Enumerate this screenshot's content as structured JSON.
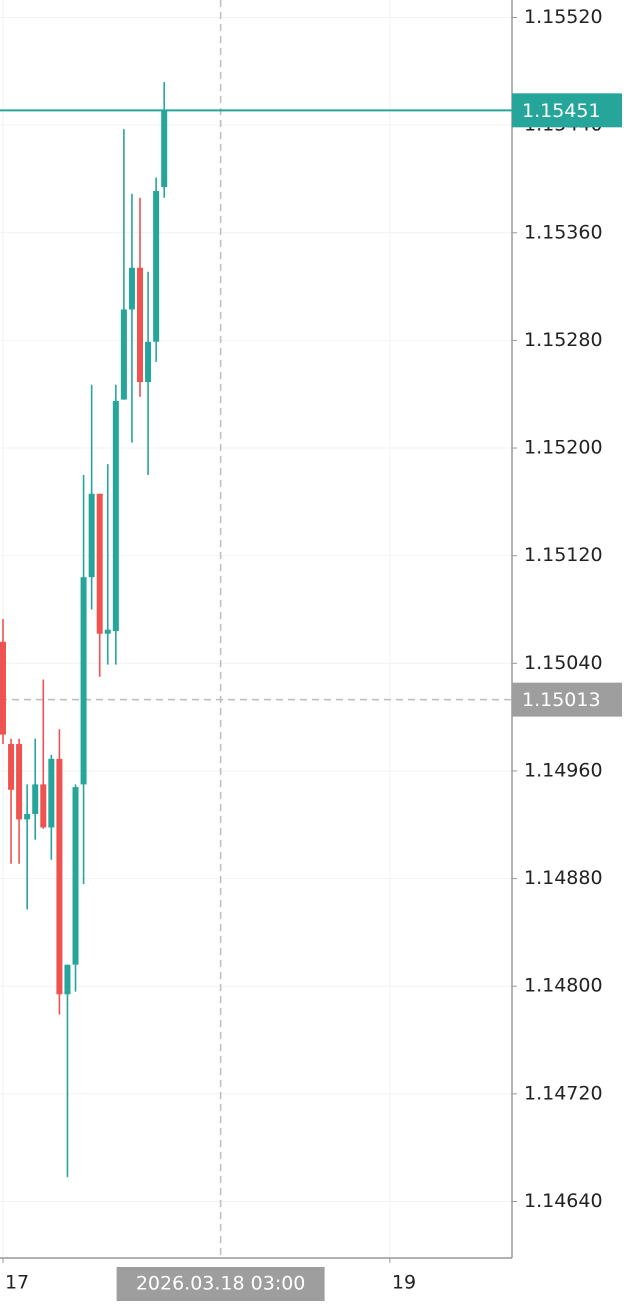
{
  "chart_data": {
    "type": "candlestick",
    "x": [
      0,
      1,
      2,
      3,
      4,
      5,
      6,
      7,
      8,
      9,
      10,
      11,
      12,
      13,
      14,
      15,
      16,
      17,
      18,
      19,
      20
    ],
    "open": [
      1.15056,
      1.1498,
      1.1498,
      1.14924,
      1.14928,
      1.1495,
      1.14918,
      1.14969,
      1.14794,
      1.14816,
      1.1495,
      1.15104,
      1.15166,
      1.15062,
      1.15064,
      1.15236,
      1.15303,
      1.15334,
      1.15249,
      1.15279,
      1.15394
    ],
    "high": [
      1.15073,
      1.14984,
      1.14984,
      1.1495,
      1.14984,
      1.15028,
      1.14972,
      1.14991,
      1.14816,
      1.1495,
      1.1518,
      1.15247,
      1.15166,
      1.15188,
      1.15247,
      1.15437,
      1.15389,
      1.15386,
      1.15331,
      1.15401,
      1.15472
    ],
    "low": [
      1.1498,
      1.14891,
      1.14891,
      1.14857,
      1.14909,
      1.14917,
      1.14894,
      1.14779,
      1.14658,
      1.14796,
      1.14876,
      1.1508,
      1.1503,
      1.15039,
      1.15039,
      1.15236,
      1.15204,
      1.15238,
      1.1518,
      1.15264,
      1.15386
    ],
    "close": [
      1.14987,
      1.14946,
      1.14924,
      1.14928,
      1.1495,
      1.14918,
      1.14969,
      1.14794,
      1.14816,
      1.14948,
      1.15104,
      1.15166,
      1.15062,
      1.15065,
      1.15235,
      1.15303,
      1.15334,
      1.15249,
      1.15279,
      1.15391,
      1.15451
    ],
    "up_color": "#26a69a",
    "down_color": "#ef5350",
    "xlim": [
      -0.37,
      63.15
    ],
    "xticks": [
      {
        "value": 0,
        "label": "17"
      },
      {
        "value": 48,
        "label": "19"
      }
    ],
    "ylim": [
      1.14598,
      1.15533
    ],
    "yticks": [
      {
        "value": 1.1552,
        "label": "1.15520"
      },
      {
        "value": 1.1544,
        "label": "1.15440"
      },
      {
        "value": 1.1536,
        "label": "1.15360"
      },
      {
        "value": 1.1528,
        "label": "1.15280"
      },
      {
        "value": 1.152,
        "label": "1.15200"
      },
      {
        "value": 1.1512,
        "label": "1.15120"
      },
      {
        "value": 1.1504,
        "label": "1.15040"
      },
      {
        "value": 1.1496,
        "label": "1.14960"
      },
      {
        "value": 1.1488,
        "label": "1.14880"
      },
      {
        "value": 1.148,
        "label": "1.14800"
      },
      {
        "value": 1.1472,
        "label": "1.14720"
      },
      {
        "value": 1.1464,
        "label": "1.14640"
      }
    ],
    "grid": true,
    "last_price": 1.15451,
    "crosshair": {
      "x": 27,
      "x_label": "2026.03.18 03:00",
      "y": 1.15013
    }
  }
}
